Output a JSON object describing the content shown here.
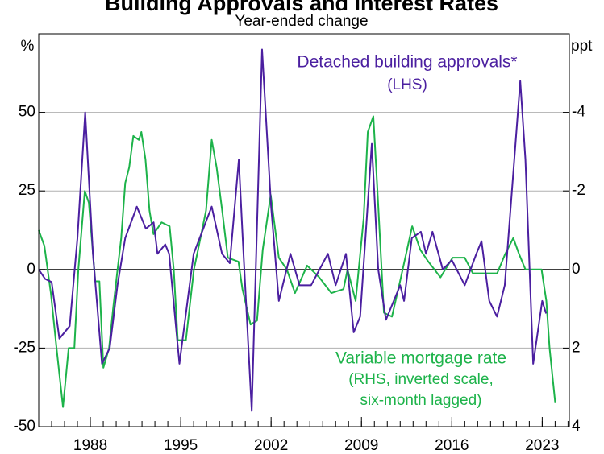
{
  "chart_data": {
    "type": "line",
    "title": "Building Approvals and Interest Rates",
    "subtitle": "Year-ended change",
    "y_unit": "%",
    "y2_unit": "ppt",
    "annotations": [
      "Detached building approvals*",
      "(LHS)",
      "Variable mortgage rate",
      "(RHS, inverted scale,",
      "six-month lagged)"
    ],
    "xlim": [
      1984,
      2025.1
    ],
    "xticks": [
      1988,
      1995,
      2002,
      2009,
      2016,
      2023
    ],
    "ylim": [
      -50,
      75
    ],
    "yticks": [
      -50,
      -25,
      0,
      25,
      50
    ],
    "y2lim": [
      4,
      -6
    ],
    "y2ticks": [
      4,
      2,
      0,
      -2,
      -4
    ],
    "grid": true,
    "series": [
      {
        "name": "Detached building approvals",
        "color": "#4b1fa0",
        "axis": "y",
        "x": [
          1984.0,
          1984.5,
          1985.0,
          1985.6,
          1986.4,
          1987.0,
          1987.6,
          1988.2,
          1988.9,
          1989.5,
          1990.1,
          1990.7,
          1991.6,
          1992.3,
          1992.9,
          1993.2,
          1993.8,
          1994.1,
          1994.9,
          1996.0,
          1997.4,
          1998.2,
          1998.8,
          1999.5,
          1999.8,
          2000.5,
          2001.3,
          2002.0,
          2002.6,
          2003.5,
          2004.2,
          2005.1,
          2006.4,
          2007.0,
          2007.8,
          2008.4,
          2008.9,
          2009.8,
          2010.3,
          2010.9,
          2012.0,
          2012.3,
          2012.9,
          2013.6,
          2014.0,
          2014.5,
          2015.3,
          2016.0,
          2017.0,
          2017.9,
          2018.3,
          2018.9,
          2019.5,
          2020.1,
          2021.3,
          2021.7,
          2022.3,
          2023.0,
          2023.3
        ],
        "values": [
          0,
          -3,
          -4,
          -22,
          -18,
          10,
          50,
          5,
          -30,
          -25,
          -5,
          10,
          20,
          13,
          15,
          5,
          8,
          5,
          -30,
          5,
          20,
          5,
          2,
          35,
          10,
          -45,
          70,
          20,
          -10,
          5,
          -5,
          -5,
          5,
          -5,
          5,
          -20,
          -15,
          40,
          0,
          -16,
          -5,
          -10,
          10,
          12,
          5,
          12,
          0,
          3,
          -5,
          5,
          9,
          -10,
          -15,
          -5,
          60,
          35,
          -30,
          -10,
          -14
        ]
      },
      {
        "name": "Variable mortgage rate",
        "color": "#1db34a",
        "axis": "y2",
        "x": [
          1984.0,
          1984.44,
          1984.94,
          1985.38,
          1985.88,
          1986.32,
          1986.76,
          1987.07,
          1987.57,
          1987.88,
          1988.38,
          1988.7,
          1989.01,
          1989.45,
          1989.76,
          1990.07,
          1990.39,
          1990.7,
          1991.01,
          1991.33,
          1991.76,
          1991.95,
          1992.27,
          1992.58,
          1992.89,
          1993.52,
          1994.14,
          1994.46,
          1994.77,
          1995.4,
          1996.02,
          1996.34,
          1996.96,
          1997.4,
          1997.78,
          1998.21,
          1998.65,
          1999.47,
          1999.78,
          2000.41,
          2000.91,
          2001.35,
          2001.97,
          2002.6,
          2003.22,
          2003.85,
          2004.79,
          2005.73,
          2006.67,
          2007.61,
          2007.92,
          2008.55,
          2009.17,
          2009.49,
          2009.92,
          2010.24,
          2010.74,
          2011.36,
          2011.99,
          2012.93,
          2013.56,
          2014.18,
          2015.12,
          2016.06,
          2017.0,
          2017.63,
          2018.57,
          2019.51,
          2020.14,
          2020.76,
          2021.2,
          2021.7,
          2022.95,
          2023.32,
          2023.57,
          2024.01
        ],
        "values": [
          -1.0,
          -0.6,
          0.6,
          2.0,
          3.5,
          2.0,
          2.0,
          0,
          -2.0,
          -1.7,
          0.3,
          0.3,
          2.5,
          2.0,
          1.0,
          0.1,
          -0.8,
          -2.2,
          -2.6,
          -3.4,
          -3.3,
          -3.5,
          -2.8,
          -1.5,
          -0.9,
          -1.2,
          -1.1,
          0,
          1.8,
          1.8,
          0,
          -0.5,
          -1.5,
          -3.3,
          -2.6,
          -1.5,
          -0.3,
          -0.2,
          0.5,
          1.4,
          1.3,
          -0.5,
          -1.9,
          -0.3,
          0,
          0.6,
          -0.1,
          0.2,
          0.6,
          0.5,
          0,
          0.8,
          -1.3,
          -3.5,
          -3.9,
          -2.0,
          1.1,
          1.2,
          0.3,
          -1.1,
          -0.5,
          -0.2,
          0.2,
          -0.3,
          -0.3,
          0.1,
          0.1,
          0.1,
          -0.4,
          -0.8,
          -0.4,
          0,
          0,
          0.8,
          2.0,
          3.4
        ]
      }
    ]
  }
}
